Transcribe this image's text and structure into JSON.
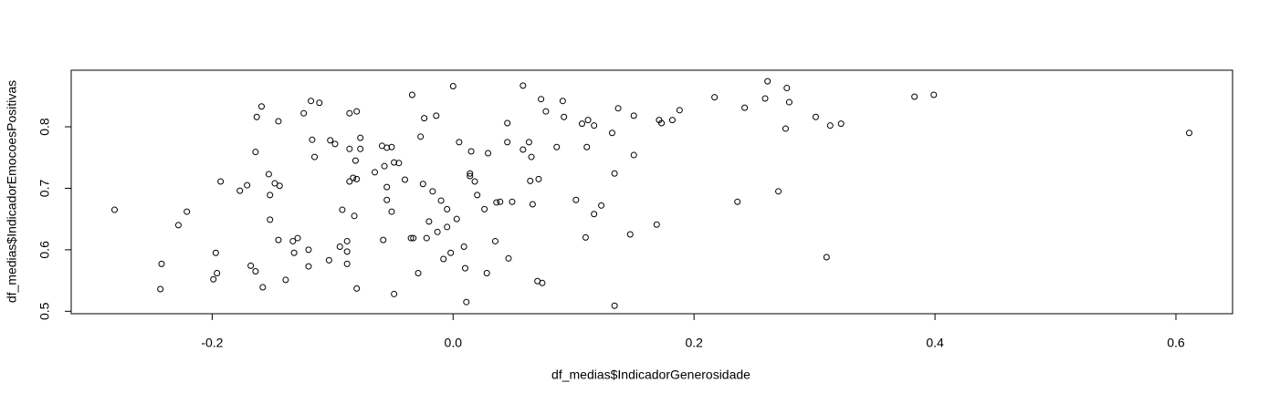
{
  "chart_data": {
    "type": "scatter",
    "x_label": "df_medias$IndicadorGenerosidade",
    "y_label": "df_medias$IndicadorEmocoesPositivas",
    "xlim": [
      -0.317,
      0.647
    ],
    "ylim": [
      0.496,
      0.892
    ],
    "xticks": [
      -0.2,
      {
        "value": 0,
        "label": "0.0"
      },
      0.2,
      0.4,
      0.6
    ],
    "yticks": [
      0.5,
      0.6,
      0.7,
      0.8
    ],
    "color": "#000000",
    "x": [
      -0.281,
      -0.242,
      -0.243,
      -0.228,
      -0.221,
      -0.197,
      -0.199,
      -0.196,
      -0.193,
      -0.177,
      -0.171,
      -0.164,
      -0.168,
      -0.164,
      -0.158,
      -0.163,
      -0.159,
      -0.153,
      -0.152,
      -0.152,
      -0.148,
      -0.144,
      -0.145,
      -0.145,
      -0.139,
      -0.133,
      -0.129,
      -0.132,
      -0.124,
      -0.118,
      -0.111,
      -0.117,
      -0.115,
      -0.12,
      -0.12,
      -0.103,
      -0.102,
      -0.098,
      -0.092,
      -0.094,
      -0.088,
      -0.088,
      -0.088,
      -0.086,
      -0.086,
      -0.086,
      -0.083,
      -0.082,
      -0.081,
      -0.08,
      -0.08,
      -0.08,
      -0.077,
      -0.077,
      -0.065,
      -0.059,
      -0.058,
      -0.057,
      -0.055,
      -0.055,
      -0.055,
      -0.051,
      -0.051,
      -0.049,
      -0.049,
      -0.045,
      -0.04,
      -0.034,
      -0.035,
      -0.033,
      -0.029,
      -0.027,
      -0.024,
      -0.025,
      -0.022,
      -0.02,
      -0.017,
      -0.014,
      -0.013,
      -0.01,
      -0.008,
      -0.005,
      -0.005,
      -0.002,
      0.0,
      0.003,
      0.005,
      0.009,
      0.01,
      0.011,
      0.014,
      0.015,
      0.014,
      0.018,
      0.02,
      0.026,
      0.028,
      0.029,
      0.035,
      0.036,
      0.039,
      0.045,
      0.045,
      0.046,
      0.049,
      0.058,
      0.058,
      0.063,
      0.065,
      0.064,
      0.066,
      0.07,
      0.071,
      0.073,
      0.074,
      0.077,
      0.086,
      0.091,
      0.092,
      0.102,
      0.107,
      0.11,
      0.111,
      0.112,
      0.117,
      0.117,
      0.123,
      0.132,
      0.134,
      0.134,
      0.137,
      0.147,
      0.15,
      0.15,
      0.169,
      0.171,
      0.173,
      0.182,
      0.188,
      0.217,
      0.236,
      0.242,
      0.259,
      0.261,
      0.27,
      0.276,
      0.277,
      0.279,
      0.301,
      0.31,
      0.313,
      0.322,
      0.383,
      0.399,
      0.611
    ],
    "values": [
      0.665,
      0.577,
      0.536,
      0.64,
      0.662,
      0.595,
      0.552,
      0.562,
      0.711,
      0.696,
      0.705,
      0.759,
      0.574,
      0.565,
      0.539,
      0.816,
      0.833,
      0.723,
      0.689,
      0.649,
      0.708,
      0.704,
      0.616,
      0.809,
      0.551,
      0.614,
      0.619,
      0.595,
      0.822,
      0.842,
      0.839,
      0.779,
      0.751,
      0.6,
      0.573,
      0.583,
      0.778,
      0.772,
      0.665,
      0.605,
      0.614,
      0.597,
      0.577,
      0.764,
      0.822,
      0.711,
      0.717,
      0.655,
      0.745,
      0.537,
      0.825,
      0.715,
      0.782,
      0.764,
      0.726,
      0.769,
      0.616,
      0.736,
      0.681,
      0.702,
      0.766,
      0.662,
      0.767,
      0.528,
      0.742,
      0.741,
      0.714,
      0.852,
      0.619,
      0.619,
      0.562,
      0.784,
      0.814,
      0.707,
      0.619,
      0.646,
      0.695,
      0.818,
      0.629,
      0.68,
      0.585,
      0.666,
      0.637,
      0.595,
      0.866,
      0.65,
      0.775,
      0.605,
      0.57,
      0.515,
      0.724,
      0.76,
      0.72,
      0.711,
      0.689,
      0.666,
      0.562,
      0.757,
      0.614,
      0.677,
      0.678,
      0.775,
      0.806,
      0.586,
      0.678,
      0.867,
      0.763,
      0.775,
      0.751,
      0.712,
      0.674,
      0.549,
      0.715,
      0.845,
      0.546,
      0.825,
      0.767,
      0.842,
      0.816,
      0.681,
      0.805,
      0.62,
      0.767,
      0.811,
      0.802,
      0.658,
      0.672,
      0.79,
      0.724,
      0.509,
      0.83,
      0.625,
      0.754,
      0.818,
      0.641,
      0.811,
      0.806,
      0.811,
      0.827,
      0.848,
      0.678,
      0.831,
      0.846,
      0.874,
      0.695,
      0.797,
      0.863,
      0.84,
      0.816,
      0.588,
      0.802,
      0.805,
      0.849,
      0.852,
      0.79
    ]
  }
}
